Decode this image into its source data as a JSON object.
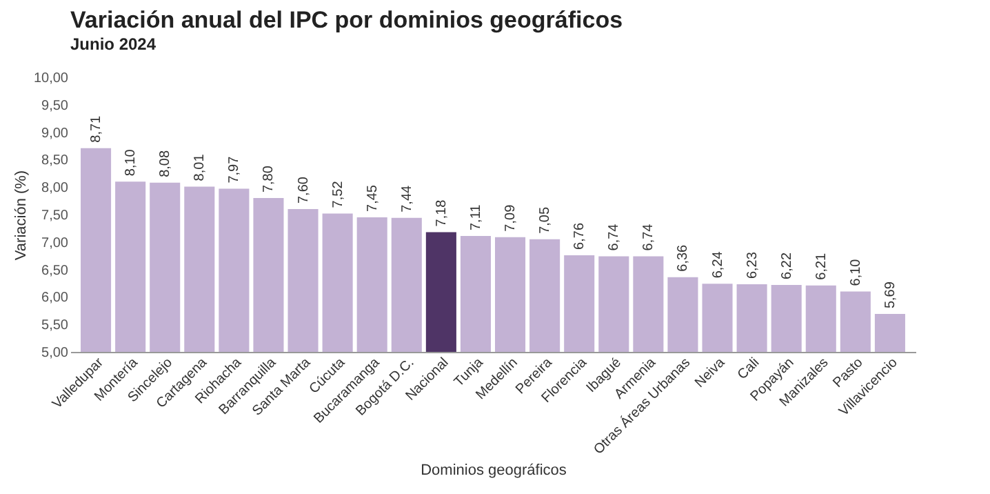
{
  "chart_data": {
    "type": "bar",
    "title": "Variación anual del IPC por dominios geográficos",
    "subtitle": "Junio 2024",
    "xlabel": "Dominios geográficos",
    "ylabel": "Variación (%)",
    "categories": [
      "Valledupar",
      "Montería",
      "Sincelejo",
      "Cartagena",
      "Riohacha",
      "Barranquilla",
      "Santa Marta",
      "Cúcuta",
      "Bucaramanga",
      "Bogotá D.C.",
      "Nacional",
      "Tunja",
      "Medellín",
      "Pereira",
      "Florencia",
      "Ibagué",
      "Armenia",
      "Otras Áreas Urbanas",
      "Neiva",
      "Cali",
      "Popayán",
      "Manizales",
      "Pasto",
      "Villavicencio"
    ],
    "values": [
      8.71,
      8.1,
      8.08,
      8.01,
      7.97,
      7.8,
      7.6,
      7.52,
      7.45,
      7.44,
      7.18,
      7.11,
      7.09,
      7.05,
      6.76,
      6.74,
      6.74,
      6.36,
      6.24,
      6.23,
      6.22,
      6.21,
      6.1,
      5.69
    ],
    "value_labels": [
      "8,71",
      "8,10",
      "8,08",
      "8,01",
      "7,97",
      "7,80",
      "7,60",
      "7,52",
      "7,45",
      "7,44",
      "7,18",
      "7,11",
      "7,09",
      "7,05",
      "6,76",
      "6,74",
      "6,74",
      "6,36",
      "6,24",
      "6,23",
      "6,22",
      "6,21",
      "6,10",
      "5,69"
    ],
    "colors": [
      "#c3b2d4",
      "#c3b2d4",
      "#c3b2d4",
      "#c3b2d4",
      "#c3b2d4",
      "#c3b2d4",
      "#c3b2d4",
      "#c3b2d4",
      "#c3b2d4",
      "#c3b2d4",
      "#4f3466",
      "#c3b2d4",
      "#c3b2d4",
      "#c3b2d4",
      "#c3b2d4",
      "#c3b2d4",
      "#c3b2d4",
      "#c3b2d4",
      "#c3b2d4",
      "#c3b2d4",
      "#c3b2d4",
      "#c3b2d4",
      "#c3b2d4",
      "#c3b2d4"
    ],
    "ylim": [
      5,
      10
    ],
    "yticks": [
      {
        "value": 5,
        "label": "5,00"
      },
      {
        "value": 5.5,
        "label": "5,50"
      },
      {
        "value": 6,
        "label": "6,00"
      },
      {
        "value": 6.5,
        "label": "6,50"
      },
      {
        "value": 7,
        "label": "7,00"
      },
      {
        "value": 7.5,
        "label": "7,50"
      },
      {
        "value": 8,
        "label": "8,00"
      },
      {
        "value": 8.5,
        "label": "8,50"
      },
      {
        "value": 9,
        "label": "9,00"
      },
      {
        "value": 9.5,
        "label": "9,50"
      },
      {
        "value": 10,
        "label": "10,00"
      }
    ],
    "grid": false
  }
}
